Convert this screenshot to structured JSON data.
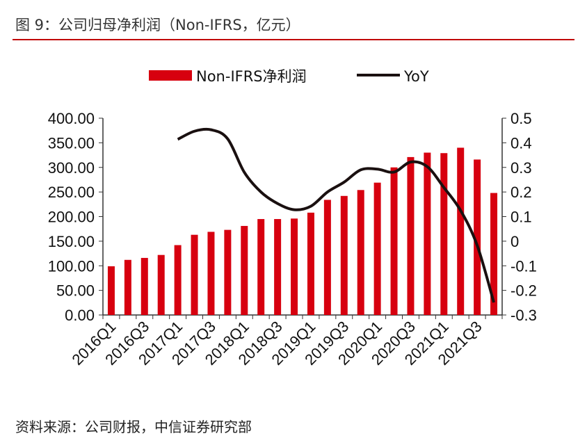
{
  "title": "图 9：公司归母净利润（Non-IFRS，亿元）",
  "source": "资料来源：公司财报，中信证券研究部",
  "chart_data": {
    "type": "bar+line",
    "title": "",
    "categories": [
      "2016Q1",
      "2016Q2",
      "2016Q3",
      "2016Q4",
      "2017Q1",
      "2017Q2",
      "2017Q3",
      "2017Q4",
      "2018Q1",
      "2018Q2",
      "2018Q3",
      "2018Q4",
      "2019Q1",
      "2019Q2",
      "2019Q3",
      "2019Q4",
      "2020Q1",
      "2020Q2",
      "2020Q3",
      "2020Q4",
      "2021Q1",
      "2021Q2",
      "2021Q3",
      "2021Q4"
    ],
    "x_tick_labels": [
      "2016Q1",
      "2016Q3",
      "2017Q1",
      "2017Q3",
      "2018Q1",
      "2018Q3",
      "2019Q1",
      "2019Q3",
      "2020Q1",
      "2020Q3",
      "2021Q1",
      "2021Q3"
    ],
    "series": [
      {
        "name": "Non-IFRS净利润",
        "type": "bar",
        "axis": "left",
        "color": "#d7000f",
        "values": [
          99,
          112,
          116,
          122,
          142,
          163,
          169,
          173,
          181,
          195,
          195,
          196,
          208,
          234,
          242,
          254,
          269,
          300,
          321,
          330,
          329,
          340,
          316,
          248
        ]
      },
      {
        "name": "YoY",
        "type": "line",
        "axis": "right",
        "color": "#1a1010",
        "values": [
          null,
          null,
          null,
          null,
          0.414,
          0.447,
          0.453,
          0.416,
          0.28,
          0.2,
          0.153,
          0.128,
          0.142,
          0.2,
          0.24,
          0.29,
          0.293,
          0.281,
          0.322,
          0.303,
          0.218,
          0.125,
          -0.017,
          -0.249
        ]
      }
    ],
    "y_left": {
      "lim": [
        0,
        400
      ],
      "ticks": [
        "0.00",
        "50.00",
        "100.00",
        "150.00",
        "200.00",
        "250.00",
        "300.00",
        "350.00",
        "400.00"
      ]
    },
    "y_right": {
      "lim": [
        -0.3,
        0.5
      ],
      "ticks": [
        "-0.3",
        "-0.2",
        "-0.1",
        "0",
        "0.1",
        "0.2",
        "0.3",
        "0.4",
        "0.5"
      ]
    },
    "grid": false,
    "legend": "top"
  }
}
